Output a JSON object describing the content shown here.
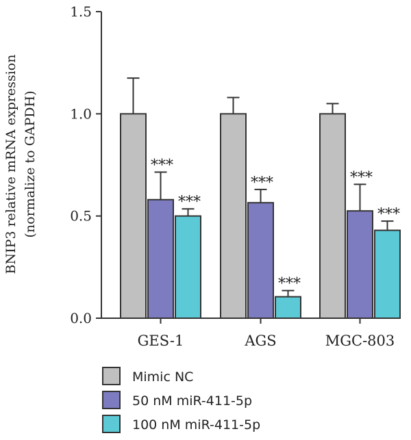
{
  "chart_data": {
    "type": "bar",
    "categories": [
      "GES-1",
      "AGS",
      "MGC-803"
    ],
    "ylabel_lines": [
      "BNIP3 relative mRNA expression",
      "(normalize to GAPDH)"
    ],
    "ylim": [
      0,
      1.5
    ],
    "yticks": [
      0.0,
      0.5,
      1.0,
      1.5
    ],
    "ytick_labels": [
      "0.0",
      "0.5",
      "1.0",
      "1.5"
    ],
    "grid": false,
    "legend_position": "bottom-left",
    "series": [
      {
        "name": "Mimic NC",
        "color": "#c0c0c0",
        "values": [
          1.0,
          1.0,
          1.0
        ],
        "errors": [
          0.175,
          0.08,
          0.05
        ],
        "significance": [
          "",
          "",
          ""
        ]
      },
      {
        "name": "50 nM miR-411-5p",
        "color": "#7e7cc0",
        "values": [
          0.58,
          0.565,
          0.525
        ],
        "errors": [
          0.135,
          0.065,
          0.13
        ],
        "significance": [
          "***",
          "***",
          "***"
        ]
      },
      {
        "name": "100 nM miR-411-5p",
        "color": "#5cc9d6",
        "values": [
          0.5,
          0.105,
          0.43
        ],
        "errors": [
          0.035,
          0.03,
          0.045
        ],
        "significance": [
          "***",
          "***",
          "***"
        ]
      }
    ]
  }
}
